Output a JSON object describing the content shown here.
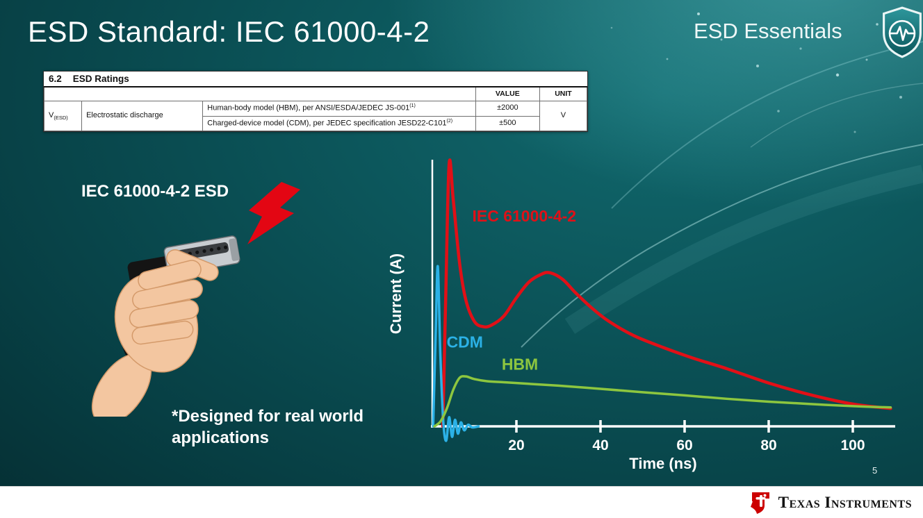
{
  "slide": {
    "title": "ESD Standard: IEC 61000-4-2",
    "series_label": "ESD Essentials",
    "page_number": "5"
  },
  "icons": {
    "header_badge": "esd-shield-pulse-icon",
    "illustration_strike": "lightning-bolt-icon",
    "footer_logo": "ti-logo-icon"
  },
  "ratings_table": {
    "section_number": "6.2",
    "section_title": "ESD Ratings",
    "headers": {
      "value": "VALUE",
      "unit": "UNIT"
    },
    "symbol": "V",
    "symbol_sub": "(ESD)",
    "parameter": "Electrostatic discharge",
    "rows": [
      {
        "description": "Human-body model (HBM), per ANSI/ESDA/JEDEC JS-001",
        "ref": "(1)",
        "value": "±2000"
      },
      {
        "description": "Charged-device model (CDM), per JEDEC specification JESD22-C101",
        "ref": "(2)",
        "value": "±500"
      }
    ],
    "unit": "V"
  },
  "illustration": {
    "label": "IEC 61000-4-2 ESD",
    "note": "*Designed for real world applications"
  },
  "chart_data": {
    "type": "line",
    "title": "",
    "xlabel": "Time (ns)",
    "ylabel": "Current (A)",
    "xlim": [
      0,
      110
    ],
    "ylim": [
      -0.08,
      1.05
    ],
    "x_ticks": [
      20,
      40,
      60,
      80,
      100
    ],
    "grid": false,
    "legend": "inline-labels",
    "series": [
      {
        "name": "IEC 61000-4-2",
        "color": "#e11017",
        "width": 4.5,
        "label_pos": {
          "x": 9.5,
          "y": 0.78
        },
        "x": [
          2.5,
          3.2,
          4,
          5,
          6.5,
          8,
          10,
          12,
          14,
          17,
          20,
          23,
          26,
          28,
          31,
          34,
          38,
          42,
          48,
          55,
          62,
          70,
          80,
          90,
          100,
          109
        ],
        "y": [
          0,
          0.5,
          1.0,
          0.86,
          0.62,
          0.48,
          0.4,
          0.38,
          0.385,
          0.42,
          0.49,
          0.55,
          0.58,
          0.585,
          0.56,
          0.51,
          0.45,
          0.4,
          0.345,
          0.3,
          0.26,
          0.22,
          0.165,
          0.12,
          0.085,
          0.068
        ]
      },
      {
        "name": "CDM",
        "color": "#2bb1e6",
        "width": 3.5,
        "label_pos": {
          "x": 3.4,
          "y": 0.3
        },
        "x": [
          0.2,
          0.8,
          1.3,
          1.9,
          2.6,
          3.3,
          4,
          4.7,
          5.4,
          6.1,
          6.8,
          7.6,
          8.5,
          9.5,
          11
        ],
        "y": [
          0,
          0.35,
          0.61,
          0.28,
          0.02,
          -0.055,
          0.035,
          -0.04,
          0.025,
          -0.028,
          0.015,
          -0.015,
          0.006,
          -0.004,
          0
        ]
      },
      {
        "name": "HBM",
        "color": "#8dc63f",
        "width": 3.5,
        "label_pos": {
          "x": 16.5,
          "y": 0.215
        },
        "x": [
          0.5,
          2,
          3.5,
          5,
          6.5,
          8,
          10,
          13,
          17,
          22,
          30,
          40,
          50,
          60,
          70,
          80,
          90,
          100,
          109
        ],
        "y": [
          0,
          0.02,
          0.07,
          0.14,
          0.185,
          0.19,
          0.18,
          0.172,
          0.168,
          0.163,
          0.155,
          0.143,
          0.13,
          0.118,
          0.105,
          0.094,
          0.085,
          0.077,
          0.072
        ]
      }
    ]
  },
  "footer": {
    "brand": "Texas Instruments"
  }
}
